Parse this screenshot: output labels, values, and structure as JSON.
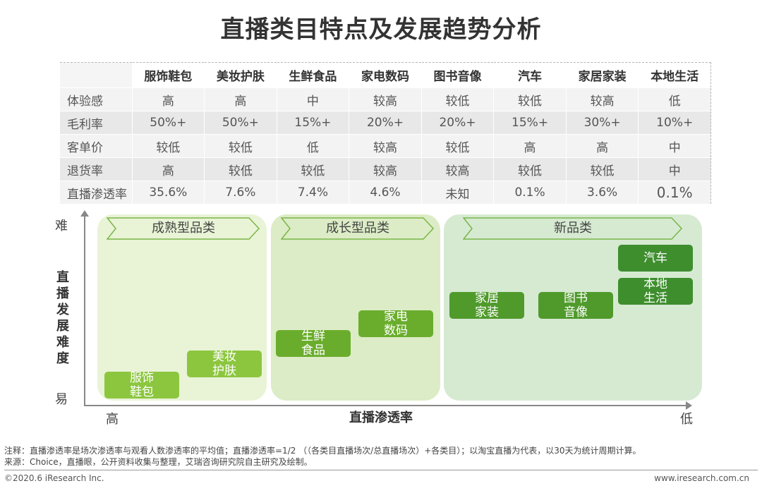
{
  "title": "直播类目特点及发展趋势分析",
  "table": {
    "columns": [
      "",
      "服饰鞋包",
      "美妆护肤",
      "生鲜食品",
      "家电数码",
      "图书音像",
      "汽车",
      "家居家装",
      "本地生活"
    ],
    "rows": [
      {
        "label": "体验感",
        "values": [
          "高",
          "高",
          "中",
          "较高",
          "较低",
          "较低",
          "较高",
          "低"
        ]
      },
      {
        "label": "毛利率",
        "values": [
          "50%+",
          "50%+",
          "15%+",
          "20%+",
          "20%+",
          "15%+",
          "30%+",
          "10%+"
        ]
      },
      {
        "label": "客单价",
        "values": [
          "较低",
          "较低",
          "低",
          "较高",
          "较低",
          "高",
          "高",
          "中"
        ]
      },
      {
        "label": "退货率",
        "values": [
          "高",
          "较低",
          "较低",
          "较高",
          "较高",
          "较低",
          "较低",
          "中"
        ]
      },
      {
        "label": "直播渗透率",
        "values": [
          "35.6%",
          "7.6%",
          "7.4%",
          "4.6%",
          "未知",
          "0.1%",
          "3.6%",
          "0.1%"
        ]
      }
    ]
  },
  "diagram": {
    "y_axis": {
      "label": "直播发展难度",
      "top": "难",
      "bottom": "易"
    },
    "x_axis": {
      "label": "直播渗透率",
      "left": "高",
      "right": "低"
    },
    "zones": [
      {
        "label": "成熟型品类"
      },
      {
        "label": "成长型品类"
      },
      {
        "label": "新品类"
      }
    ],
    "items": [
      {
        "label": "服饰鞋包"
      },
      {
        "label": "美妆护肤"
      },
      {
        "label": "生鲜食品"
      },
      {
        "label": "家电数码"
      },
      {
        "label": "家居家装"
      },
      {
        "label": "图书音像"
      },
      {
        "label": "汽车"
      },
      {
        "label": "本地生活"
      }
    ],
    "colors": {
      "zone1": "#e9f3d6",
      "zone2": "#dcecc6",
      "zone3": "#d6ead2",
      "box_light": "#8cc63f",
      "box_dark": "#3e8e2e"
    }
  },
  "notes": {
    "note1": "注释：直播渗透率是场次渗透率与观看人数渗透率的平均值；直播渗透率=1/2 （（各类目直播场次/总直播场次）+各类目）；以淘宝直播为代表，以30天为统计周期计算。",
    "note2": "来源：Choice，直播眼，公开资料收集与整理，艾瑞咨询研究院自主研究及绘制。"
  },
  "footer": {
    "left": "©2020.6 iResearch Inc.",
    "right": "www.iresearch.com.cn"
  }
}
